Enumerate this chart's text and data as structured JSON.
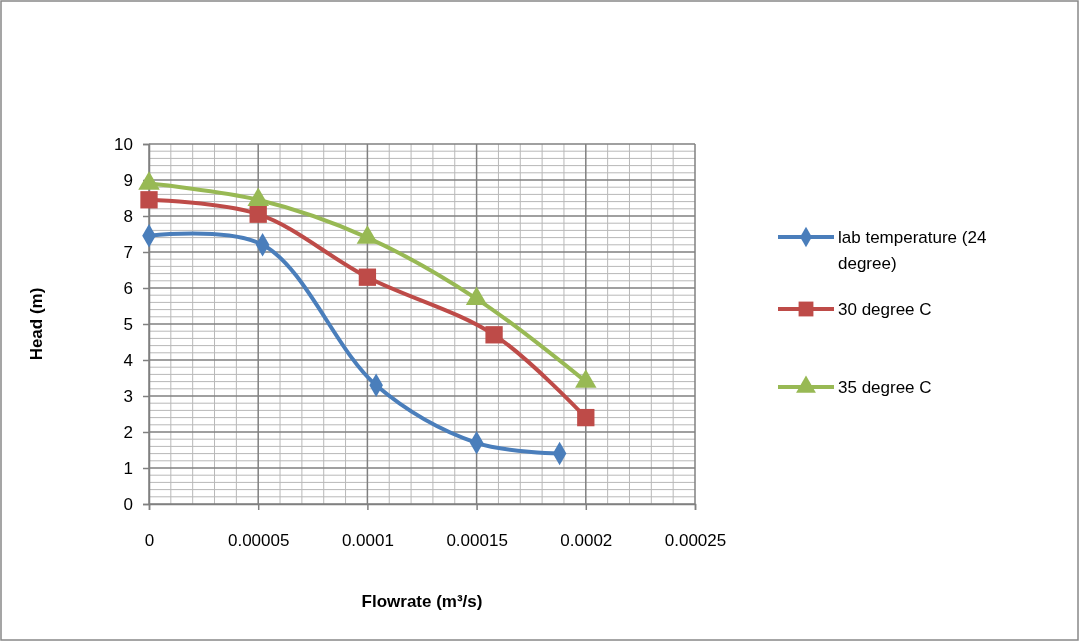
{
  "chart_data": {
    "type": "line",
    "xlabel": "Flowrate (m³/s)",
    "ylabel": "Head (m)",
    "xlim": [
      0,
      0.00025
    ],
    "xticks": [
      0,
      {
        "value": 5e-05,
        "label": "0.00005"
      },
      0.0001,
      0.00015,
      0.0002,
      0.00025
    ],
    "ylim": [
      0,
      10
    ],
    "yticks": [
      0,
      1,
      2,
      3,
      4,
      5,
      6,
      7,
      8,
      9,
      10
    ],
    "grid": true,
    "legend": "right",
    "series": [
      {
        "name": "lab temperature (24 degree)",
        "color": "#4a7ebb",
        "marker": "diamond",
        "x": [
          0,
          5.2e-05,
          0.000104,
          0.00015,
          0.000188
        ],
        "values": [
          7.45,
          7.2,
          3.3,
          1.7,
          1.4
        ]
      },
      {
        "name": "30 degree C",
        "color": "#be4b48",
        "marker": "square",
        "x": [
          0,
          5e-05,
          0.0001,
          0.000158,
          0.0002
        ],
        "values": [
          8.45,
          8.05,
          6.3,
          4.7,
          2.4
        ]
      },
      {
        "name": "35 degree C",
        "color": "#98b954",
        "marker": "triangle",
        "x": [
          0,
          5e-05,
          0.0001,
          0.00015,
          0.0002
        ],
        "values": [
          8.9,
          8.45,
          7.4,
          5.7,
          3.4
        ]
      }
    ]
  }
}
